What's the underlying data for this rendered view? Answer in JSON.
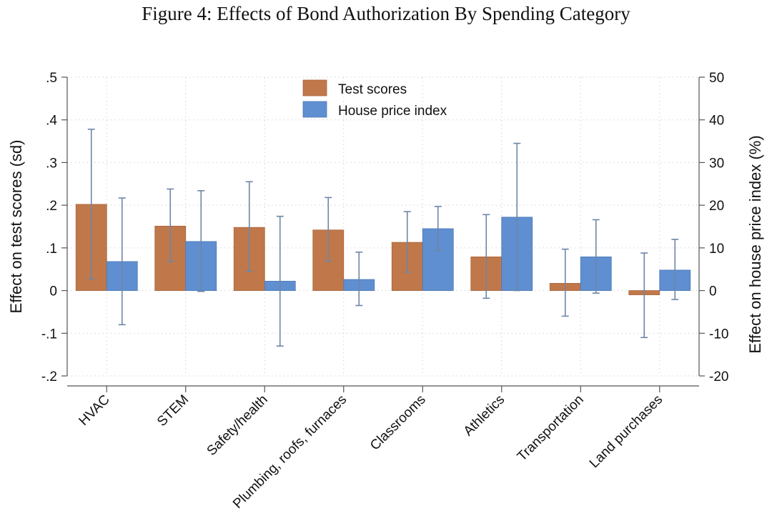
{
  "figure_title": "Figure 4: Effects of Bond Authorization By Spending Category",
  "colors": {
    "test_scores": "#c0784a",
    "house_price": "#5f8fd0",
    "error_bar": "#6d86a7"
  },
  "chart_data": {
    "type": "bar",
    "title": "Figure 4: Effects of Bond Authorization By Spending Category",
    "xlabel": "",
    "ylabel": "Effect on test scores (sd)",
    "ylabel_right": "Effect on house price index (%)",
    "ylim": [
      -0.2,
      0.5
    ],
    "ylim_right": [
      -20,
      50
    ],
    "yticks": [
      -0.2,
      -0.1,
      0,
      0.1,
      0.2,
      0.3,
      0.4,
      0.5
    ],
    "yticks_labels": [
      "-.2",
      "-.1",
      "0",
      ".1",
      ".2",
      ".3",
      ".4",
      ".5"
    ],
    "yticks_right": [
      -20,
      -10,
      0,
      10,
      20,
      30,
      40,
      50
    ],
    "yticks_right_labels": [
      "-20",
      "-10",
      "0",
      "10",
      "20",
      "30",
      "40",
      "50"
    ],
    "grid": true,
    "legend_position": "top-center",
    "categories": [
      "HVAC",
      "STEM",
      "Safety/health",
      "Plumbing, roofs, furnaces",
      "Classrooms",
      "Athletics",
      "Transportation",
      "Land purchases"
    ],
    "series": [
      {
        "name": "Test scores",
        "axis": "left",
        "values": [
          0.202,
          0.151,
          0.148,
          0.142,
          0.113,
          0.079,
          0.017,
          -0.01
        ],
        "ci_low": [
          0.028,
          0.068,
          0.045,
          0.069,
          0.043,
          -0.018,
          -0.06,
          -0.11
        ],
        "ci_high": [
          0.378,
          0.238,
          0.255,
          0.218,
          0.185,
          0.178,
          0.097,
          0.088
        ]
      },
      {
        "name": "House price index",
        "axis": "right",
        "values": [
          6.8,
          11.5,
          2.2,
          2.6,
          14.5,
          17.2,
          7.9,
          4.8
        ],
        "ci_low": [
          -8.0,
          -0.2,
          -13.0,
          -3.5,
          9.4,
          0.0,
          -0.6,
          -2.1
        ],
        "ci_high": [
          21.7,
          23.4,
          17.4,
          9.0,
          19.7,
          34.5,
          16.6,
          12.0
        ]
      }
    ]
  }
}
